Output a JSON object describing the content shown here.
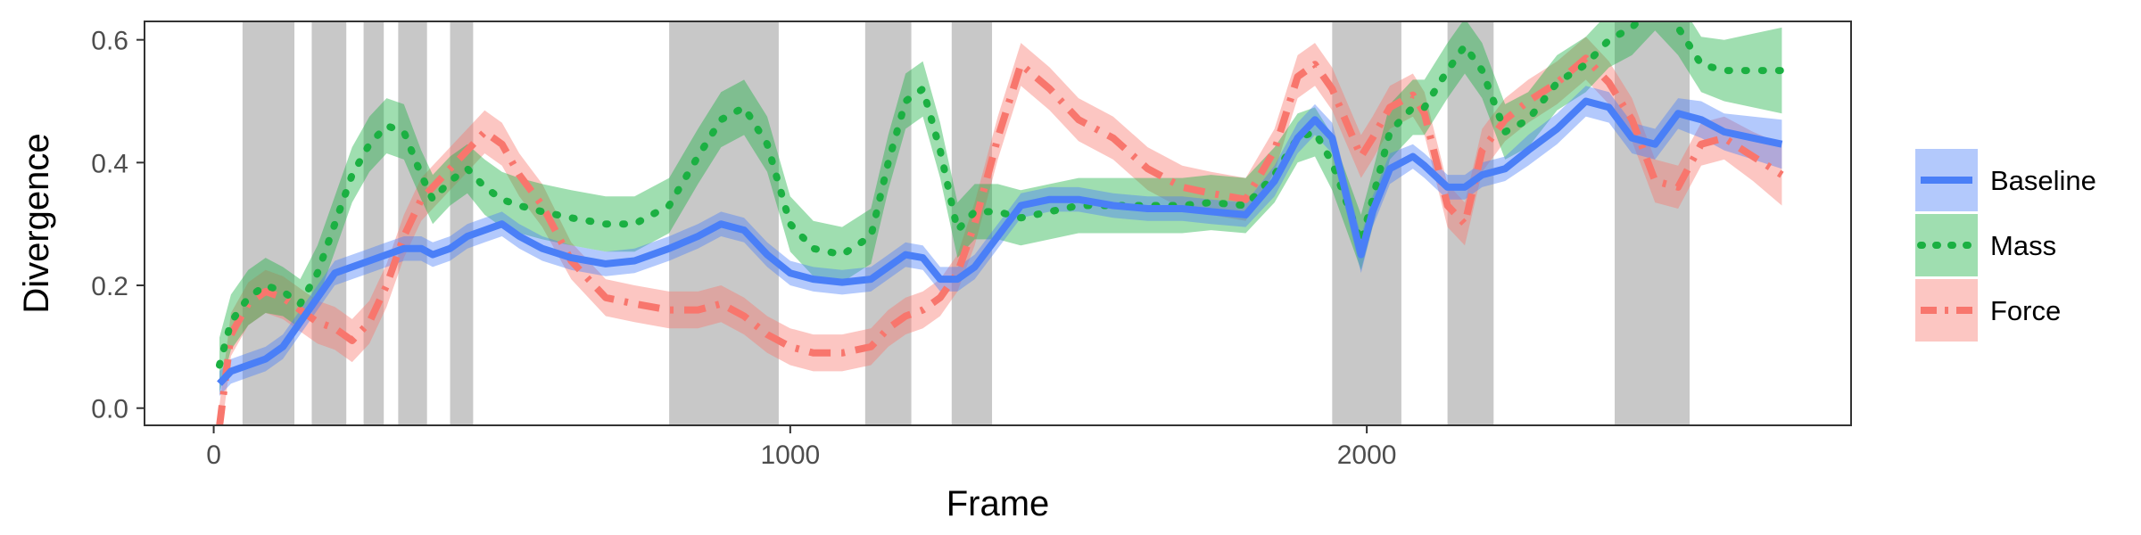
{
  "chart_data": {
    "type": "line",
    "xlabel": "Frame",
    "ylabel": "Divergence",
    "xlim": [
      -120,
      2840
    ],
    "ylim": [
      -0.028,
      0.63
    ],
    "xticks": [
      0,
      1000,
      2000
    ],
    "xtick_labels": [
      "0",
      "1000",
      "2000"
    ],
    "yticks": [
      0.0,
      0.2,
      0.4,
      0.6
    ],
    "ytick_labels": [
      "0.0",
      "0.2",
      "0.4",
      "0.6"
    ],
    "grid": false,
    "legend_position": "right",
    "shaded_intervals": [
      [
        50,
        140
      ],
      [
        170,
        230
      ],
      [
        260,
        295
      ],
      [
        320,
        370
      ],
      [
        410,
        450
      ],
      [
        790,
        980
      ],
      [
        1130,
        1210
      ],
      [
        1280,
        1350
      ],
      [
        1940,
        2060
      ],
      [
        2140,
        2220
      ],
      [
        2430,
        2560
      ]
    ],
    "series": [
      {
        "name": "Baseline",
        "color": "#4A7FF7",
        "dash": "solid",
        "x": [
          10,
          30,
          60,
          90,
          120,
          150,
          180,
          210,
          240,
          270,
          300,
          330,
          360,
          380,
          410,
          440,
          470,
          500,
          530,
          570,
          620,
          680,
          730,
          790,
          840,
          880,
          920,
          960,
          1000,
          1040,
          1090,
          1140,
          1170,
          1200,
          1230,
          1260,
          1290,
          1320,
          1360,
          1400,
          1450,
          1500,
          1560,
          1620,
          1680,
          1730,
          1790,
          1840,
          1880,
          1910,
          1940,
          1990,
          2010,
          2040,
          2080,
          2100,
          2140,
          2170,
          2200,
          2240,
          2280,
          2330,
          2380,
          2420,
          2460,
          2500,
          2540,
          2580,
          2620,
          2670,
          2720
        ],
        "y": [
          0.04,
          0.06,
          0.07,
          0.08,
          0.1,
          0.14,
          0.18,
          0.22,
          0.23,
          0.24,
          0.25,
          0.26,
          0.26,
          0.25,
          0.26,
          0.28,
          0.29,
          0.3,
          0.28,
          0.26,
          0.245,
          0.235,
          0.24,
          0.26,
          0.28,
          0.3,
          0.29,
          0.25,
          0.22,
          0.21,
          0.205,
          0.21,
          0.23,
          0.25,
          0.245,
          0.21,
          0.21,
          0.23,
          0.28,
          0.33,
          0.34,
          0.34,
          0.33,
          0.325,
          0.325,
          0.32,
          0.315,
          0.37,
          0.44,
          0.47,
          0.44,
          0.25,
          0.32,
          0.39,
          0.41,
          0.395,
          0.36,
          0.36,
          0.38,
          0.39,
          0.42,
          0.455,
          0.5,
          0.49,
          0.44,
          0.43,
          0.48,
          0.47,
          0.45,
          0.44,
          0.43
        ],
        "band": [
          0.02,
          0.02,
          0.02,
          0.02,
          0.02,
          0.02,
          0.02,
          0.02,
          0.02,
          0.02,
          0.02,
          0.02,
          0.02,
          0.02,
          0.02,
          0.02,
          0.02,
          0.02,
          0.02,
          0.02,
          0.02,
          0.02,
          0.02,
          0.02,
          0.02,
          0.02,
          0.02,
          0.02,
          0.02,
          0.02,
          0.02,
          0.02,
          0.02,
          0.02,
          0.02,
          0.02,
          0.02,
          0.02,
          0.02,
          0.02,
          0.02,
          0.02,
          0.02,
          0.02,
          0.02,
          0.02,
          0.02,
          0.025,
          0.025,
          0.025,
          0.025,
          0.03,
          0.025,
          0.025,
          0.02,
          0.02,
          0.02,
          0.02,
          0.02,
          0.02,
          0.025,
          0.025,
          0.025,
          0.025,
          0.025,
          0.025,
          0.025,
          0.03,
          0.03,
          0.035,
          0.04
        ]
      },
      {
        "name": "Mass",
        "color": "#1BB042",
        "dash": "dotted",
        "x": [
          10,
          30,
          60,
          90,
          120,
          150,
          180,
          210,
          240,
          270,
          300,
          330,
          360,
          380,
          410,
          440,
          470,
          500,
          530,
          570,
          620,
          680,
          730,
          790,
          840,
          880,
          920,
          960,
          1000,
          1040,
          1090,
          1140,
          1170,
          1200,
          1230,
          1260,
          1290,
          1320,
          1360,
          1400,
          1450,
          1500,
          1560,
          1620,
          1680,
          1730,
          1790,
          1840,
          1880,
          1910,
          1940,
          1990,
          2010,
          2040,
          2080,
          2100,
          2140,
          2170,
          2200,
          2240,
          2280,
          2330,
          2380,
          2420,
          2460,
          2500,
          2540,
          2580,
          2620,
          2670,
          2720
        ],
        "y": [
          0.07,
          0.14,
          0.18,
          0.2,
          0.19,
          0.17,
          0.22,
          0.3,
          0.38,
          0.43,
          0.46,
          0.45,
          0.38,
          0.34,
          0.37,
          0.39,
          0.36,
          0.34,
          0.33,
          0.32,
          0.31,
          0.3,
          0.3,
          0.33,
          0.41,
          0.47,
          0.49,
          0.43,
          0.3,
          0.26,
          0.25,
          0.28,
          0.4,
          0.5,
          0.52,
          0.42,
          0.29,
          0.32,
          0.32,
          0.31,
          0.32,
          0.33,
          0.33,
          0.33,
          0.33,
          0.335,
          0.33,
          0.38,
          0.44,
          0.45,
          0.4,
          0.27,
          0.34,
          0.45,
          0.49,
          0.49,
          0.55,
          0.59,
          0.55,
          0.45,
          0.47,
          0.53,
          0.56,
          0.6,
          0.62,
          0.66,
          0.62,
          0.56,
          0.55,
          0.55,
          0.55
        ],
        "band": [
          0.045,
          0.045,
          0.045,
          0.045,
          0.04,
          0.04,
          0.045,
          0.045,
          0.045,
          0.045,
          0.045,
          0.045,
          0.04,
          0.04,
          0.04,
          0.04,
          0.045,
          0.045,
          0.045,
          0.045,
          0.045,
          0.045,
          0.045,
          0.045,
          0.045,
          0.045,
          0.045,
          0.045,
          0.045,
          0.045,
          0.045,
          0.045,
          0.045,
          0.045,
          0.045,
          0.045,
          0.045,
          0.045,
          0.045,
          0.045,
          0.045,
          0.045,
          0.045,
          0.045,
          0.045,
          0.045,
          0.045,
          0.045,
          0.04,
          0.04,
          0.045,
          0.045,
          0.045,
          0.045,
          0.045,
          0.045,
          0.045,
          0.045,
          0.045,
          0.045,
          0.045,
          0.045,
          0.045,
          0.045,
          0.045,
          0.045,
          0.045,
          0.045,
          0.05,
          0.06,
          0.07
        ]
      },
      {
        "name": "Force",
        "color": "#F8766D",
        "dash": "dashdot",
        "x": [
          10,
          30,
          60,
          90,
          120,
          150,
          180,
          210,
          240,
          270,
          300,
          330,
          360,
          380,
          410,
          440,
          470,
          500,
          530,
          570,
          620,
          680,
          730,
          790,
          840,
          880,
          920,
          960,
          1000,
          1040,
          1090,
          1140,
          1170,
          1200,
          1230,
          1260,
          1290,
          1320,
          1360,
          1400,
          1450,
          1500,
          1560,
          1620,
          1680,
          1730,
          1790,
          1840,
          1880,
          1910,
          1940,
          1990,
          2010,
          2040,
          2080,
          2100,
          2140,
          2170,
          2200,
          2240,
          2280,
          2330,
          2380,
          2420,
          2460,
          2500,
          2540,
          2580,
          2620,
          2670,
          2720
        ],
        "y": [
          -0.03,
          0.12,
          0.17,
          0.19,
          0.18,
          0.16,
          0.14,
          0.13,
          0.11,
          0.14,
          0.2,
          0.28,
          0.34,
          0.36,
          0.39,
          0.42,
          0.45,
          0.43,
          0.38,
          0.33,
          0.24,
          0.18,
          0.17,
          0.16,
          0.16,
          0.17,
          0.15,
          0.12,
          0.1,
          0.09,
          0.09,
          0.1,
          0.13,
          0.15,
          0.16,
          0.18,
          0.22,
          0.3,
          0.44,
          0.56,
          0.52,
          0.47,
          0.44,
          0.39,
          0.36,
          0.35,
          0.34,
          0.42,
          0.54,
          0.56,
          0.52,
          0.41,
          0.44,
          0.49,
          0.51,
          0.48,
          0.33,
          0.3,
          0.42,
          0.47,
          0.5,
          0.53,
          0.57,
          0.53,
          0.47,
          0.37,
          0.36,
          0.43,
          0.44,
          0.41,
          0.38
        ],
        "band": [
          0.035,
          0.035,
          0.035,
          0.035,
          0.035,
          0.035,
          0.035,
          0.035,
          0.035,
          0.035,
          0.035,
          0.035,
          0.035,
          0.035,
          0.035,
          0.035,
          0.035,
          0.035,
          0.035,
          0.035,
          0.03,
          0.03,
          0.03,
          0.03,
          0.03,
          0.03,
          0.03,
          0.03,
          0.03,
          0.03,
          0.03,
          0.03,
          0.03,
          0.03,
          0.03,
          0.03,
          0.03,
          0.035,
          0.035,
          0.035,
          0.035,
          0.035,
          0.035,
          0.035,
          0.035,
          0.035,
          0.035,
          0.035,
          0.035,
          0.035,
          0.035,
          0.035,
          0.035,
          0.035,
          0.035,
          0.035,
          0.035,
          0.035,
          0.035,
          0.035,
          0.035,
          0.035,
          0.035,
          0.035,
          0.035,
          0.035,
          0.035,
          0.035,
          0.035,
          0.04,
          0.05
        ]
      }
    ]
  }
}
